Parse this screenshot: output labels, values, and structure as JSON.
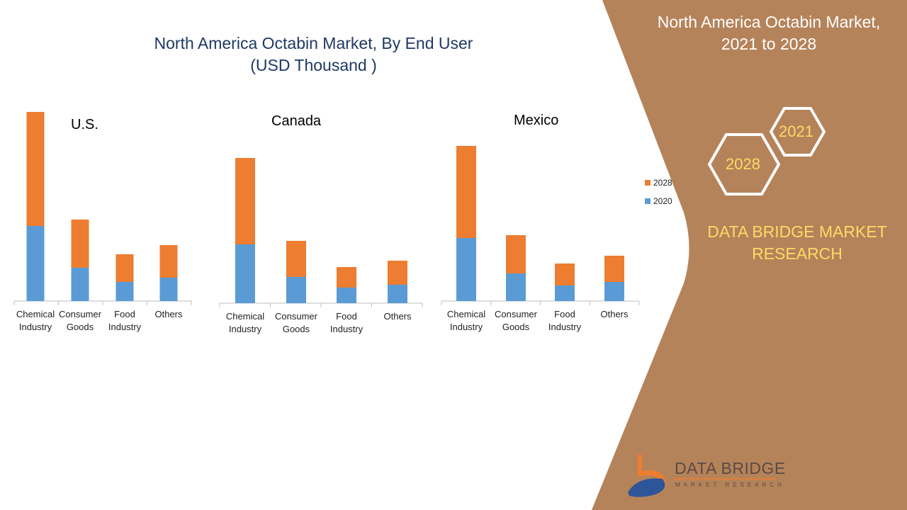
{
  "title_line1": "North America Octabin Market, By End User",
  "title_line2": "(USD Thousand )",
  "right_title_line1": "North America Octabin Market,",
  "right_title_line2": "2021 to 2028",
  "hex_labels": [
    "2021",
    "2028"
  ],
  "brand_line1": "DATA BRIDGE MARKET",
  "brand_line2": "RESEARCH",
  "logo": {
    "text": "DATA BRIDGE",
    "sub": "MARKET RESEARCH"
  },
  "colors": {
    "2020": "#5b9bd5",
    "2028": "#ed7d31",
    "panel": "#b5835a",
    "accent": "#ffd966"
  },
  "chart_data": [
    {
      "type": "bar",
      "stacked": true,
      "title": "U.S.",
      "categories": [
        [
          "Chemical",
          "Industry"
        ],
        [
          "Consumer",
          "Goods"
        ],
        [
          "Food",
          "Industry"
        ],
        [
          "Others"
        ]
      ],
      "series": [
        {
          "name": "2020",
          "values": [
            212,
            94,
            54,
            66
          ]
        },
        {
          "name": "2028",
          "values": [
            322,
            136,
            78,
            92
          ]
        }
      ],
      "legend": "right",
      "grid": false
    },
    {
      "type": "bar",
      "stacked": true,
      "title": "Canada",
      "categories": [
        [
          "Chemical",
          "Industry"
        ],
        [
          "Consumer",
          "Goods"
        ],
        [
          "Food",
          "Industry"
        ],
        [
          "Others"
        ]
      ],
      "series": [
        {
          "name": "2020",
          "values": [
            166,
            74,
            44,
            52
          ]
        },
        {
          "name": "2028",
          "values": [
            244,
            102,
            58,
            68
          ]
        }
      ],
      "legend": "right",
      "grid": false
    },
    {
      "type": "bar",
      "stacked": true,
      "title": "Mexico",
      "categories": [
        [
          "Chemical",
          "Industry"
        ],
        [
          "Consumer",
          "Goods"
        ],
        [
          "Food",
          "Industry"
        ],
        [
          "Others"
        ]
      ],
      "series": [
        {
          "name": "2020",
          "values": [
            178,
            78,
            44,
            54
          ]
        },
        {
          "name": "2028",
          "values": [
            260,
            108,
            62,
            74
          ]
        }
      ],
      "legend": "right",
      "grid": false
    }
  ]
}
